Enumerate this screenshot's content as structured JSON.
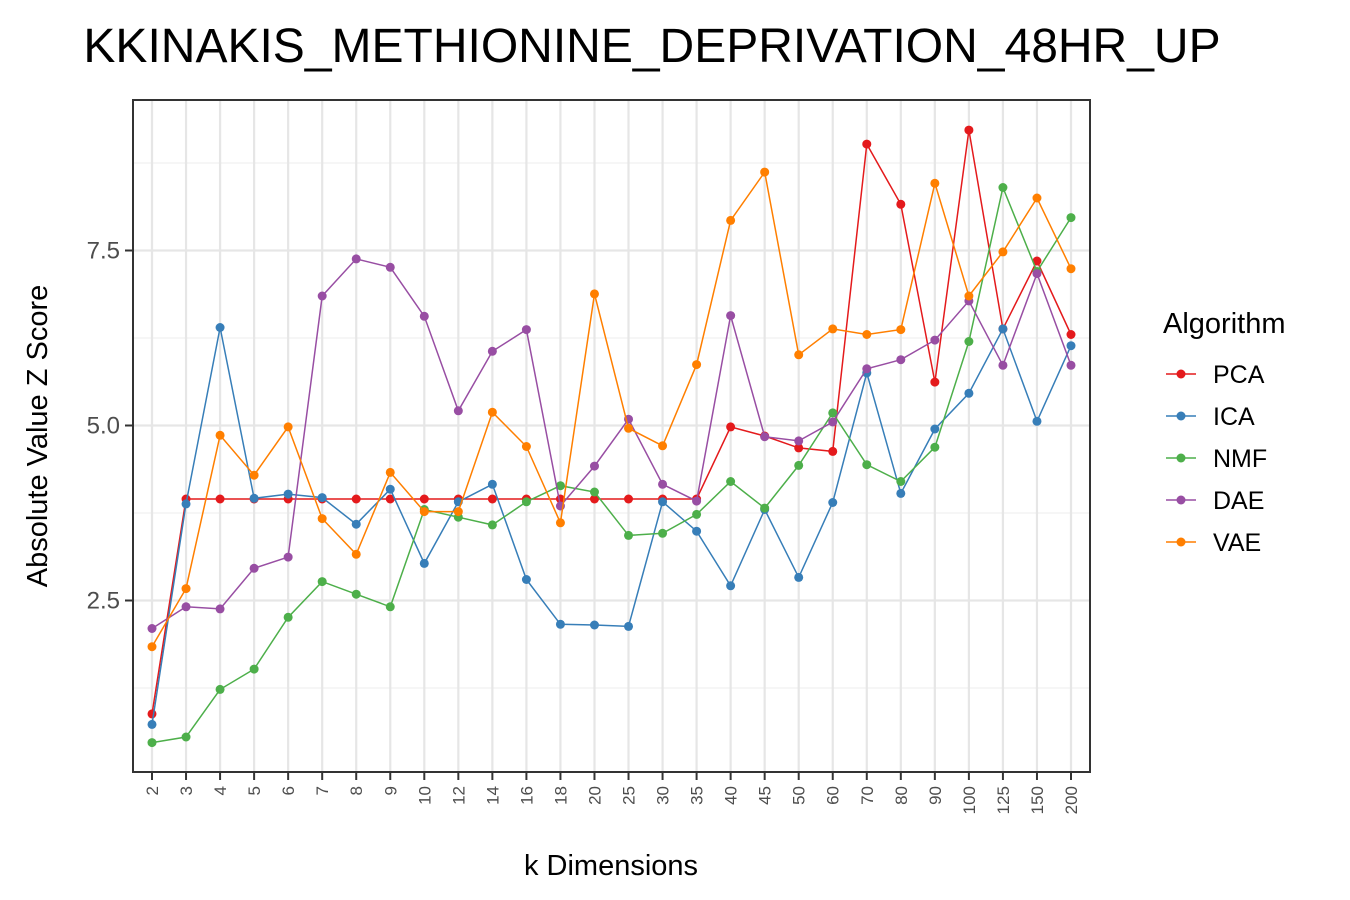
{
  "chart_data": {
    "type": "line",
    "title": "KKINAKIS_METHIONINE_DEPRIVATION_48HR_UP",
    "xlabel": "k Dimensions",
    "ylabel": "Absolute Value Z Score",
    "legend_title": "Algorithm",
    "legend_position": "right",
    "grid": true,
    "categories": [
      "2",
      "3",
      "4",
      "5",
      "6",
      "7",
      "8",
      "9",
      "10",
      "12",
      "14",
      "16",
      "18",
      "20",
      "25",
      "30",
      "35",
      "40",
      "45",
      "50",
      "60",
      "70",
      "80",
      "90",
      "100",
      "125",
      "150",
      "200"
    ],
    "ylim": [
      0.05,
      9.65
    ],
    "yticks": [
      2.5,
      5.0,
      7.5
    ],
    "ytick_labels": [
      "2.5",
      "5.0",
      "7.5"
    ],
    "series": [
      {
        "name": "PCA",
        "color": "#E41A1C",
        "values": [
          0.88,
          3.95,
          3.95,
          3.95,
          3.95,
          3.95,
          3.95,
          3.95,
          3.95,
          3.95,
          3.95,
          3.95,
          3.95,
          3.95,
          3.95,
          3.95,
          3.95,
          4.98,
          4.85,
          4.68,
          4.63,
          9.02,
          8.16,
          5.62,
          9.22,
          6.38,
          7.35,
          6.3
        ]
      },
      {
        "name": "ICA",
        "color": "#377EB8",
        "values": [
          0.73,
          3.88,
          6.4,
          3.96,
          4.02,
          3.97,
          3.59,
          4.09,
          3.03,
          3.91,
          4.16,
          2.8,
          2.16,
          2.15,
          2.13,
          3.91,
          3.49,
          2.71,
          3.8,
          2.83,
          3.9,
          5.75,
          4.03,
          4.95,
          5.46,
          6.38,
          5.06,
          6.14
        ]
      },
      {
        "name": "NMF",
        "color": "#4DAF4A",
        "values": [
          0.47,
          0.55,
          1.23,
          1.52,
          2.26,
          2.77,
          2.59,
          2.41,
          3.8,
          3.69,
          3.58,
          3.91,
          4.14,
          4.05,
          3.43,
          3.46,
          3.73,
          4.2,
          3.82,
          4.43,
          5.18,
          4.44,
          4.2,
          4.69,
          6.2,
          8.4,
          7.2,
          7.97
        ]
      },
      {
        "name": "DAE",
        "color": "#984EA3",
        "values": [
          2.1,
          2.41,
          2.38,
          2.96,
          3.12,
          6.85,
          7.38,
          7.26,
          6.56,
          5.21,
          6.06,
          6.37,
          3.85,
          4.42,
          5.09,
          4.16,
          3.92,
          6.57,
          4.84,
          4.78,
          5.05,
          5.81,
          5.94,
          6.22,
          6.78,
          5.86,
          7.17,
          5.86
        ]
      },
      {
        "name": "VAE",
        "color": "#FF7F00",
        "values": [
          1.84,
          2.67,
          4.86,
          4.29,
          4.98,
          3.67,
          3.16,
          4.33,
          3.77,
          3.77,
          5.19,
          4.7,
          3.61,
          6.88,
          4.96,
          4.71,
          5.87,
          7.93,
          8.62,
          6.01,
          6.38,
          6.3,
          6.37,
          8.46,
          6.85,
          7.48,
          8.25,
          7.24
        ]
      }
    ]
  }
}
